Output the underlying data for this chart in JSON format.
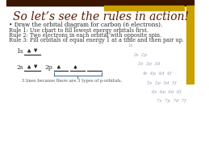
{
  "title": "So let’s see the rules in action!",
  "bullet": "• Draw the orbital diagram for carbon (6 electrons).",
  "rule1": "Rule 1: Use chart to fill lowest energy orbitals first.",
  "rule2": "Rule 2: Two electrons in each orbital with opposite spin.",
  "rule3": "Rule 3: Fill orbitals of equal energy 1 at a time and then pair up.",
  "footnote": "3 lines because there are 3 types of p-orbitals.",
  "bg_color": "#ffffff",
  "title_color": "#5a1a00",
  "rule_color": "#333333",
  "orbital_chart": [
    [
      "1s"
    ],
    [
      "2s",
      "2p"
    ],
    [
      "3s",
      "3p",
      "3d"
    ],
    [
      "4s",
      "4p",
      "4d",
      "4f"
    ],
    [
      "5s",
      "5p",
      "5d",
      "5f"
    ],
    [
      "6s",
      "6p",
      "6d",
      "6f"
    ],
    [
      "7s",
      "7p",
      "7d",
      "7f"
    ]
  ],
  "chart_color": "#9999bb",
  "top_brown_color": "#3a1500",
  "top_gold_color": "#c8a000",
  "right_gold_color": "#c8a000",
  "arrow_color": "#222222",
  "line_color": "#333333",
  "bracket_color": "#4477aa"
}
